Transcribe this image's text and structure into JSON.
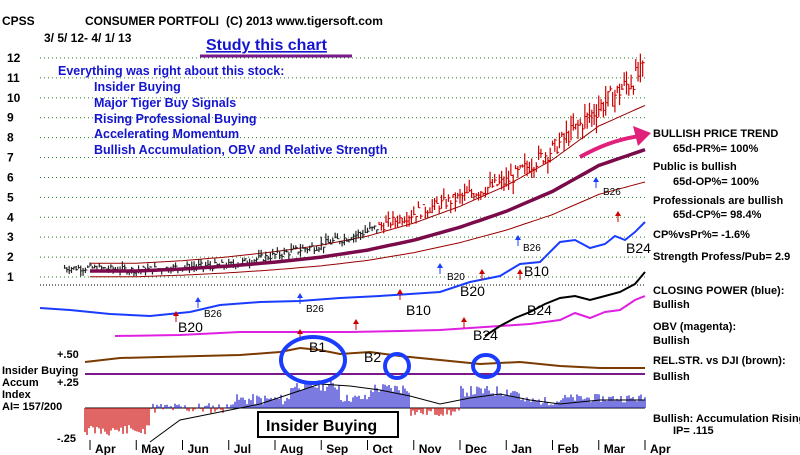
{
  "header": {
    "symbol": "CPSS",
    "company": "CONSUMER PORTFOLI",
    "copyright": "(C) 2013 www.tigersoft.com",
    "date_range": "3/ 5/ 12- 4/ 1/ 13"
  },
  "annotations": {
    "study_title": "Study this chart",
    "notes": [
      "Everything was right about this stock:",
      "Insider Buying",
      "Major Tiger Buy Signals",
      "Rising Professional Buying",
      "Accelerating Momentum",
      "Bullish Accumulation, OBV and Relative Strength"
    ],
    "insider_box": "Insider Buying"
  },
  "right_labels": [
    "BULLISH PRICE TREND",
    "65d-PR%= 100%",
    "Public is bullish",
    "65d-OP%= 100%",
    "Professionals are bullish",
    "65d-CP%= 98.4%",
    "CP%vsPr%= -1.6%",
    "Strength Profess/Pub= 2.9",
    "CLOSING POWER (blue):",
    "Bullish",
    "OBV (magenta):",
    "Bullish",
    "REL.STR. vs DJI (brown):",
    "Bullish",
    "Bullish: Accumulation Rising",
    "IP= .115"
  ],
  "left_labels": {
    "rel_str_level": "+.50",
    "accum_title_1": "Insider Buying",
    "accum_title_2": "Accum",
    "accum_level": "+.25",
    "accum_title_3": "Index",
    "ai_value": "AI= 157/200",
    "accum_low": "-.25"
  },
  "signals": [
    "B20",
    "B26",
    "B26",
    "B10",
    "B20",
    "B20",
    "B10",
    "B26",
    "B24",
    "B24",
    "B26",
    "B24",
    "B1",
    "B2"
  ],
  "colors": {
    "closing_power": "#1a3cff",
    "obv": "#e020e0",
    "rel_strength": "#7a3a00",
    "price_bars": "#cc0000",
    "moving_average": "#7a0a4a",
    "band": "#990000",
    "accum_positive": "#2222cc",
    "accum_negative": "#cc0000",
    "circle": "#1a3cff",
    "annotation": "#1515d0",
    "arrow": "#e0207a"
  },
  "chart_data": {
    "type": "line",
    "title": "CONSUMER PORTFOLI",
    "x_axis": {
      "tick_labels": [
        "Apr",
        "May",
        "Jun",
        "Jul",
        "Aug",
        "Sep",
        "Oct",
        "Nov",
        "Dec",
        "Jan",
        "Feb",
        "Mar",
        "Apr"
      ]
    },
    "y_axis": {
      "tick_labels": [
        "1",
        "2",
        "3",
        "4",
        "5",
        "6",
        "7",
        "8",
        "9",
        "10",
        "11",
        "12"
      ],
      "range": [
        0.6,
        12.4
      ],
      "grid": true
    },
    "x_months": [
      0,
      1,
      2,
      3,
      4,
      5,
      6,
      7,
      8,
      9,
      10,
      11,
      12
    ],
    "series": [
      {
        "values": [
          1.45,
          1.35,
          1.5,
          1.6,
          2.1,
          2.6,
          3.3,
          4.2,
          5.0,
          5.8,
          7.4,
          9.5,
          11.4
        ]
      },
      {
        "values": [
          1.3,
          1.3,
          1.4,
          1.55,
          1.75,
          2.0,
          2.35,
          2.85,
          3.5,
          4.3,
          5.3,
          6.6,
          7.4
        ]
      }
    ]
  }
}
